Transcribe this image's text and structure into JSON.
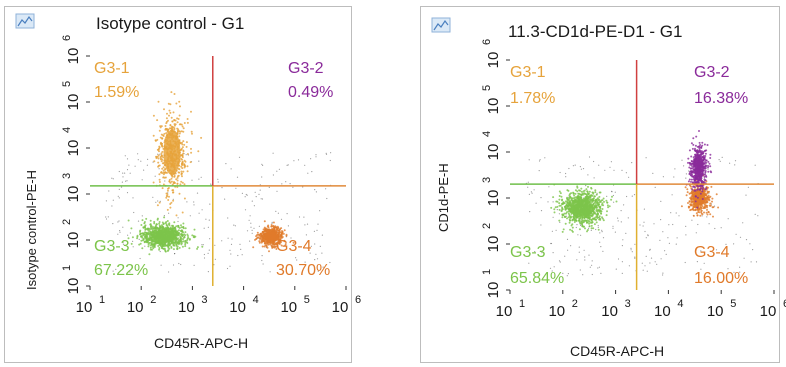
{
  "colors": {
    "g3_1": "#e6a33b",
    "g3_2": "#8a2a9a",
    "g3_3": "#7cc44a",
    "g3_4": "#e07a2a",
    "gate_h_left": "#6fbf4a",
    "gate_h_right": "#e08a3a",
    "gate_v_top": "#d04040",
    "gate_v_bottom": "#e0b030",
    "events": "#4a4a4a"
  },
  "chart_data": [
    {
      "type": "scatter",
      "title": "Isotype control - G1",
      "xlabel": "CD45R-APC-H",
      "ylabel": "Isotype control-PE-H",
      "x_scale": "log",
      "y_scale": "log",
      "xlim": [
        10,
        1000000
      ],
      "ylim": [
        10,
        1000000
      ],
      "x_ticks": [
        {
          "base": "10",
          "exp": "1"
        },
        {
          "base": "10",
          "exp": "2"
        },
        {
          "base": "10",
          "exp": "3"
        },
        {
          "base": "10",
          "exp": "4"
        },
        {
          "base": "10",
          "exp": "5"
        },
        {
          "base": "10",
          "exp": "6"
        }
      ],
      "y_ticks": [
        {
          "base": "10",
          "exp": "1"
        },
        {
          "base": "10",
          "exp": "2"
        },
        {
          "base": "10",
          "exp": "3"
        },
        {
          "base": "10",
          "exp": "4"
        },
        {
          "base": "10",
          "exp": "5"
        },
        {
          "base": "10",
          "exp": "6"
        }
      ],
      "gate": {
        "x": 2500,
        "y": 1500
      },
      "quadrants": [
        {
          "name": "G3-1",
          "percent": "1.59%",
          "position": "top-left",
          "color": "#e6a33b"
        },
        {
          "name": "G3-2",
          "percent": "0.49%",
          "position": "top-right",
          "color": "#8a2a9a"
        },
        {
          "name": "G3-3",
          "percent": "67.22%",
          "position": "bottom-left",
          "color": "#7cc44a"
        },
        {
          "name": "G3-4",
          "percent": "30.70%",
          "position": "bottom-right",
          "color": "#e07a2a"
        }
      ],
      "populations": [
        {
          "quadrant": "G3-3",
          "center": [
            280,
            120
          ],
          "spread": [
            0.22,
            0.13
          ],
          "color": "#7cc44a"
        },
        {
          "quadrant": "G3-4",
          "center": [
            35000,
            120
          ],
          "spread": [
            0.12,
            0.1
          ],
          "color": "#e07a2a"
        },
        {
          "quadrant": "G3-1",
          "center": [
            400,
            8000
          ],
          "spread": [
            0.15,
            0.45
          ],
          "color": "#e6a33b"
        }
      ]
    },
    {
      "type": "scatter",
      "title": "11.3-CD1d-PE-D1 - G1",
      "xlabel": "CD45R-APC-H",
      "ylabel": "CD1d-PE-H",
      "x_scale": "log",
      "y_scale": "log",
      "xlim": [
        10,
        1000000
      ],
      "ylim": [
        10,
        1000000
      ],
      "x_ticks": [
        {
          "base": "10",
          "exp": "1"
        },
        {
          "base": "10",
          "exp": "2"
        },
        {
          "base": "10",
          "exp": "3"
        },
        {
          "base": "10",
          "exp": "4"
        },
        {
          "base": "10",
          "exp": "5"
        },
        {
          "base": "10",
          "exp": "6"
        }
      ],
      "y_ticks": [
        {
          "base": "10",
          "exp": "1"
        },
        {
          "base": "10",
          "exp": "2"
        },
        {
          "base": "10",
          "exp": "3"
        },
        {
          "base": "10",
          "exp": "4"
        },
        {
          "base": "10",
          "exp": "5"
        },
        {
          "base": "10",
          "exp": "6"
        }
      ],
      "gate": {
        "x": 2500,
        "y": 2000
      },
      "quadrants": [
        {
          "name": "G3-1",
          "percent": "1.78%",
          "position": "top-left",
          "color": "#e6a33b"
        },
        {
          "name": "G3-2",
          "percent": "16.38%",
          "position": "top-right",
          "color": "#8a2a9a"
        },
        {
          "name": "G3-3",
          "percent": "65.84%",
          "position": "bottom-left",
          "color": "#7cc44a"
        },
        {
          "name": "G3-4",
          "percent": "16.00%",
          "position": "bottom-right",
          "color": "#e07a2a"
        }
      ],
      "populations": [
        {
          "quadrant": "G3-3",
          "center": [
            230,
            600
          ],
          "spread": [
            0.2,
            0.18
          ],
          "color": "#7cc44a"
        },
        {
          "quadrant": "G3-4",
          "center": [
            38000,
            1000
          ],
          "spread": [
            0.1,
            0.15
          ],
          "color": "#e07a2a"
        },
        {
          "quadrant": "G3-2",
          "center": [
            38000,
            4500
          ],
          "spread": [
            0.08,
            0.25
          ],
          "color": "#8a2a9a"
        }
      ]
    }
  ]
}
